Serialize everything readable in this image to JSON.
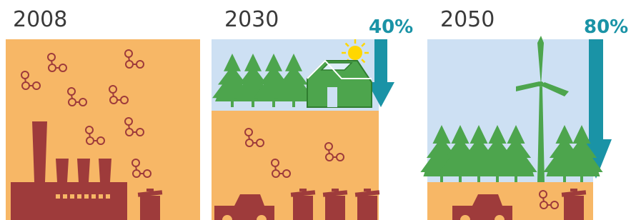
{
  "panels": [
    {
      "year": "2008"
    },
    {
      "year": "2030",
      "reduction": "40%"
    },
    {
      "year": "2050",
      "reduction": "80%"
    }
  ]
}
